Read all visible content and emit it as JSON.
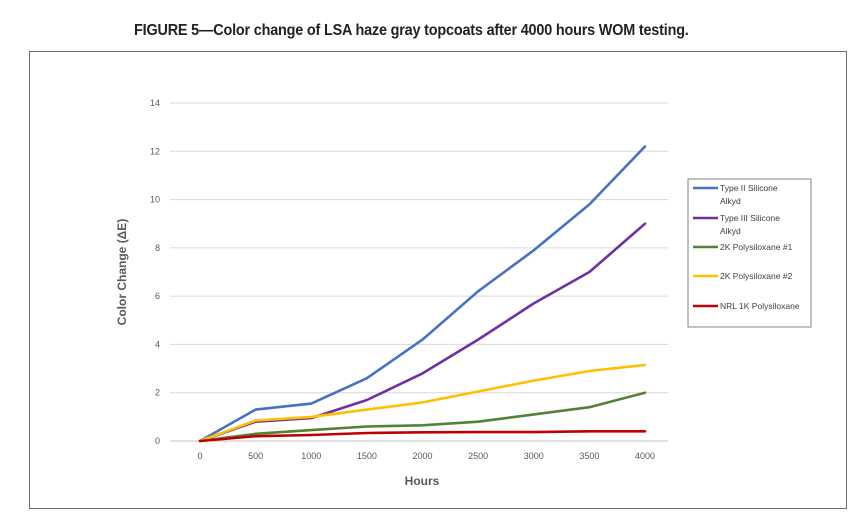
{
  "figure_title": "FIGURE 5—Color change of LSA haze gray topcoats after 4000 hours WOM testing.",
  "chart_data": {
    "type": "line",
    "xlabel": "Hours",
    "ylabel": "Color Change (ΔE)",
    "x": [
      0,
      500,
      1000,
      1500,
      2000,
      2500,
      3000,
      3500,
      4000
    ],
    "xticks": [
      0,
      500,
      1000,
      1500,
      2000,
      2500,
      3000,
      3500,
      4000
    ],
    "yticks": [
      0,
      2,
      4,
      6,
      8,
      10,
      12,
      14
    ],
    "xlim": [
      0,
      4000
    ],
    "ylim": [
      0,
      14
    ],
    "grid": true,
    "legend_position": "right",
    "series": [
      {
        "name_lines": [
          "Type II Silicone",
          "Alkyd"
        ],
        "color": "#4472C4",
        "values": [
          0,
          1.3,
          1.55,
          2.6,
          4.2,
          6.2,
          7.9,
          9.8,
          12.2
        ]
      },
      {
        "name_lines": [
          "Type III Silicone",
          "Alkyd"
        ],
        "color": "#7030A0",
        "values": [
          0,
          0.8,
          0.95,
          1.7,
          2.8,
          4.2,
          5.7,
          7.0,
          9.0
        ]
      },
      {
        "name_lines": [
          "2K Polysiloxane #1"
        ],
        "color": "#548235",
        "values": [
          0,
          0.3,
          0.45,
          0.6,
          0.65,
          0.8,
          1.1,
          1.4,
          2.0
        ]
      },
      {
        "name_lines": [
          "2K Polysiloxane #2"
        ],
        "color": "#FFC000",
        "values": [
          0,
          0.85,
          1.0,
          1.3,
          1.6,
          2.05,
          2.5,
          2.9,
          3.15
        ]
      },
      {
        "name_lines": [
          "NRL 1K Polysiloxane"
        ],
        "color": "#C00000",
        "values": [
          0,
          0.2,
          0.25,
          0.33,
          0.36,
          0.37,
          0.37,
          0.4,
          0.4
        ]
      }
    ]
  }
}
